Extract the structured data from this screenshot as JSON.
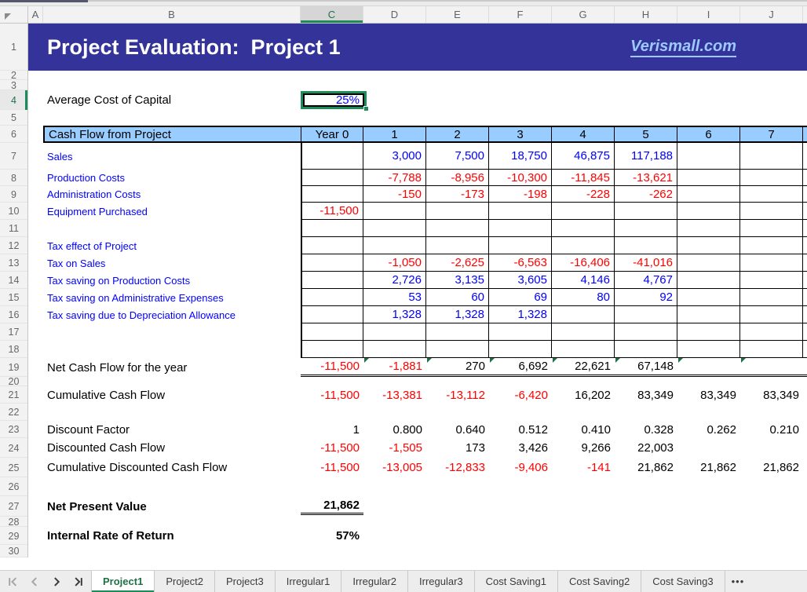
{
  "columns": [
    "A",
    "B",
    "C",
    "D",
    "E",
    "F",
    "G",
    "H",
    "I",
    "J"
  ],
  "selected_column": "C",
  "selected_cell_row": "4",
  "row_numbers": [
    "1",
    "2",
    "3",
    "4",
    "5",
    "6",
    "7",
    "8",
    "9",
    "10",
    "11",
    "12",
    "13",
    "14",
    "15",
    "16",
    "17",
    "18",
    "19",
    "20",
    "21",
    "22",
    "23",
    "24",
    "25",
    "26",
    "27",
    "28",
    "29",
    "30"
  ],
  "title": {
    "text": "Project Evaluation:  Project 1",
    "link": "Verismall.com"
  },
  "capital": {
    "label": "Average Cost of Capital",
    "value": "25%"
  },
  "grid": {
    "header": {
      "label": "Cash Flow from Project"
    },
    "header_cells": [
      "Year 0",
      "1",
      "2",
      "3",
      "4",
      "5",
      "6",
      "7"
    ],
    "rows": [
      {
        "label": "Sales",
        "values": [
          "",
          "3,000",
          "7,500",
          "18,750",
          "46,875",
          "117,188",
          "",
          ""
        ]
      },
      {
        "label": "Production Costs",
        "values": [
          "",
          "-7,788",
          "-8,956",
          "-10,300",
          "-11,845",
          "-13,621",
          "",
          ""
        ]
      },
      {
        "label": "Administration Costs",
        "values": [
          "",
          "-150",
          "-173",
          "-198",
          "-228",
          "-262",
          "",
          ""
        ]
      },
      {
        "label": "Equipment Purchased",
        "values": [
          "-11,500",
          "",
          "",
          "",
          "",
          "",
          "",
          ""
        ]
      },
      {
        "label": "",
        "values": [
          "",
          "",
          "",
          "",
          "",
          "",
          "",
          ""
        ]
      },
      {
        "label": "Tax effect of Project",
        "values": [
          "",
          "",
          "",
          "",
          "",
          "",
          "",
          ""
        ]
      },
      {
        "label": "Tax on Sales",
        "values": [
          "",
          "-1,050",
          "-2,625",
          "-6,563",
          "-16,406",
          "-41,016",
          "",
          ""
        ]
      },
      {
        "label": "Tax saving on Production Costs",
        "values": [
          "",
          "2,726",
          "3,135",
          "3,605",
          "4,146",
          "4,767",
          "",
          ""
        ]
      },
      {
        "label": "Tax saving on Administrative Expenses",
        "values": [
          "",
          "53",
          "60",
          "69",
          "80",
          "92",
          "",
          ""
        ]
      },
      {
        "label": "Tax saving due to Depreciation Allowance",
        "values": [
          "",
          "1,328",
          "1,328",
          "1,328",
          "",
          "",
          "",
          ""
        ]
      },
      {
        "label": "",
        "values": [
          "",
          "",
          "",
          "",
          "",
          "",
          "",
          ""
        ]
      },
      {
        "label": "",
        "values": [
          "",
          "",
          "",
          "",
          "",
          "",
          "",
          ""
        ]
      }
    ]
  },
  "summary": {
    "net_cash_flow": {
      "label": "Net Cash Flow for the year",
      "values": [
        "-11,500",
        "-1,881",
        "270",
        "6,692",
        "22,621",
        "67,148",
        "",
        ""
      ]
    },
    "cumulative_cash_flow": {
      "label": "Cumulative Cash Flow",
      "values": [
        "-11,500",
        "-13,381",
        "-13,112",
        "-6,420",
        "16,202",
        "83,349",
        "83,349",
        "83,349"
      ]
    },
    "discount_factor": {
      "label": "Discount Factor",
      "values": [
        "1",
        "0.800",
        "0.640",
        "0.512",
        "0.410",
        "0.328",
        "0.262",
        "0.210"
      ]
    },
    "discounted_cash_flow": {
      "label": "Discounted Cash Flow",
      "values": [
        "-11,500",
        "-1,505",
        "173",
        "3,426",
        "9,266",
        "22,003",
        "",
        ""
      ]
    },
    "cumulative_discounted_cash_flow": {
      "label": "Cumulative Discounted Cash Flow",
      "values": [
        "-11,500",
        "-13,005",
        "-12,833",
        "-9,406",
        "-141",
        "21,862",
        "21,862",
        "21,862"
      ]
    }
  },
  "npv": {
    "label": "Net Present Value",
    "value": "21,862"
  },
  "irr": {
    "label": "Internal Rate of Return",
    "value": "57%"
  },
  "tabs": {
    "active": "Project1",
    "items": [
      "Project1",
      "Project2",
      "Project3",
      "Irregular1",
      "Irregular2",
      "Irregular3",
      "Cost Saving1",
      "Cost Saving2",
      "Cost Saving3"
    ],
    "more": "•••"
  },
  "colors": {
    "title_bg": "#333399",
    "header_blue": "#99CCFF",
    "link_blue": "#9DC9FF",
    "selection_green": "#1E8C5A",
    "positive_blue": "#0000FF",
    "negative_red": "#FF0000"
  }
}
